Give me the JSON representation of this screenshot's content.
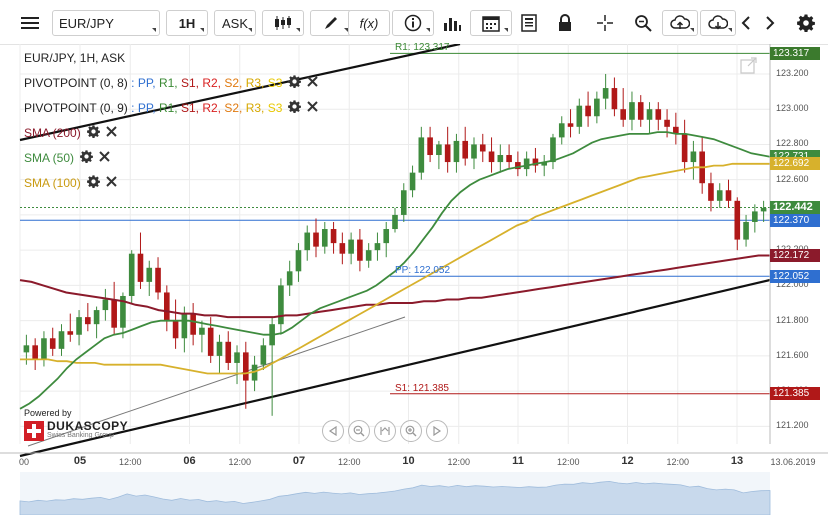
{
  "toolbar": {
    "symbol": "EUR/JPY",
    "timeframe": "1H",
    "price_side": "ASK",
    "fx_label": "f(x)"
  },
  "colors": {
    "pp": "#2f6fd0",
    "r1": "#3b8a35",
    "s1": "#b01818",
    "r2": "#d92020",
    "s2": "#e07a10",
    "r3": "#d6a800",
    "s3": "#e8c800",
    "sma200": "#8b1a2b",
    "sma50": "#3e8b3e",
    "sma100": "#d7b12c",
    "bull": "#3e8b3e",
    "bear": "#b01818",
    "trend": "#111111",
    "last_price": "#3e8b3e"
  },
  "legend": {
    "instrument": "EUR/JPY, 1H, ASK",
    "pivot1_name": "PIVOTPOINT (0, 8)",
    "pivot2_name": "PIVOTPOINT (0, 9)",
    "sep": " : ",
    "levels": [
      "PP",
      "R1",
      "S1",
      "R2",
      "S2",
      "R3",
      "S3"
    ],
    "sma200": "SMA (200)",
    "sma50": "SMA (50)",
    "sma100": "SMA (100)"
  },
  "branding": {
    "powered_by": "Powered by",
    "brand": "DUKASCOPY",
    "tagline": "Swiss Banking Group"
  },
  "chart_data": {
    "type": "candlestick",
    "ylim": [
      121.1,
      123.37
    ],
    "y_ticks": [
      "123.200",
      "123.000",
      "122.800",
      "122.600",
      "122.400",
      "122.200",
      "122.000",
      "121.800",
      "121.600",
      "121.400",
      "121.200"
    ],
    "x_ticks": [
      {
        "label": "00",
        "bold": false,
        "pos": 0.0
      },
      {
        "label": "05",
        "bold": true,
        "pos": 0.08
      },
      {
        "label": "12:00",
        "bold": false,
        "pos": 0.147
      },
      {
        "label": "06",
        "bold": true,
        "pos": 0.226
      },
      {
        "label": "12:00",
        "bold": false,
        "pos": 0.293
      },
      {
        "label": "07",
        "bold": true,
        "pos": 0.372
      },
      {
        "label": "12:00",
        "bold": false,
        "pos": 0.439
      },
      {
        "label": "10",
        "bold": true,
        "pos": 0.518
      },
      {
        "label": "12:00",
        "bold": false,
        "pos": 0.585
      },
      {
        "label": "11",
        "bold": true,
        "pos": 0.664
      },
      {
        "label": "12:00",
        "bold": false,
        "pos": 0.731
      },
      {
        "label": "12",
        "bold": true,
        "pos": 0.81
      },
      {
        "label": "12:00",
        "bold": false,
        "pos": 0.877
      },
      {
        "label": "13",
        "bold": true,
        "pos": 0.956
      }
    ],
    "date_label": "13.06.2019",
    "pivot_levels": [
      {
        "name": "R1",
        "value": 123.317,
        "label": "R1: 123.317"
      },
      {
        "name": "PP",
        "value": 122.052,
        "label": "PP: 122.052"
      },
      {
        "name": "S1",
        "value": 121.385,
        "label": "S1: 121.385"
      }
    ],
    "price_tags": [
      {
        "value": 123.317,
        "label": "123.317",
        "role": "r1"
      },
      {
        "value": 122.731,
        "label": "122.731",
        "role": "sma50"
      },
      {
        "value": 122.692,
        "label": "122.692",
        "role": "sma100"
      },
      {
        "value": 122.442,
        "label": "122.442",
        "role": "last_price"
      },
      {
        "value": 122.37,
        "label": "122.370",
        "role": "pp"
      },
      {
        "value": 122.172,
        "label": "122.172",
        "role": "sma200"
      },
      {
        "value": 122.052,
        "label": "122.052",
        "role": "pp"
      },
      {
        "value": 121.385,
        "label": "121.385",
        "role": "s1"
      }
    ],
    "candles": [
      [
        121.62,
        121.72,
        121.55,
        121.66
      ],
      [
        121.66,
        121.7,
        121.52,
        121.58
      ],
      [
        121.58,
        121.74,
        121.54,
        121.7
      ],
      [
        121.7,
        121.76,
        121.6,
        121.64
      ],
      [
        121.64,
        121.78,
        121.6,
        121.74
      ],
      [
        121.74,
        121.84,
        121.68,
        121.72
      ],
      [
        121.72,
        121.86,
        121.66,
        121.82
      ],
      [
        121.82,
        121.9,
        121.74,
        121.78
      ],
      [
        121.78,
        121.88,
        121.7,
        121.86
      ],
      [
        121.86,
        121.98,
        121.8,
        121.92
      ],
      [
        121.92,
        122.02,
        121.72,
        121.76
      ],
      [
        121.76,
        121.96,
        121.7,
        121.94
      ],
      [
        121.94,
        122.2,
        121.9,
        122.18
      ],
      [
        122.18,
        122.3,
        121.98,
        122.02
      ],
      [
        122.02,
        122.14,
        121.94,
        122.1
      ],
      [
        122.1,
        122.16,
        121.92,
        121.96
      ],
      [
        121.96,
        122.0,
        121.74,
        121.8
      ],
      [
        121.8,
        121.92,
        121.64,
        121.7
      ],
      [
        121.7,
        121.88,
        121.62,
        121.84
      ],
      [
        121.84,
        121.9,
        121.66,
        121.72
      ],
      [
        121.72,
        121.8,
        121.62,
        121.76
      ],
      [
        121.76,
        121.82,
        121.56,
        121.6
      ],
      [
        121.6,
        121.72,
        121.5,
        121.68
      ],
      [
        121.68,
        121.74,
        121.52,
        121.56
      ],
      [
        121.56,
        121.66,
        121.44,
        121.62
      ],
      [
        121.62,
        121.68,
        121.3,
        121.46
      ],
      [
        121.46,
        121.6,
        121.4,
        121.55
      ],
      [
        121.55,
        121.7,
        121.52,
        121.66
      ],
      [
        121.66,
        121.82,
        121.26,
        121.78
      ],
      [
        121.78,
        122.04,
        121.72,
        122.0
      ],
      [
        122.0,
        122.14,
        121.94,
        122.08
      ],
      [
        122.08,
        122.24,
        122.02,
        122.2
      ],
      [
        122.2,
        122.34,
        122.14,
        122.3
      ],
      [
        122.3,
        122.38,
        122.16,
        122.22
      ],
      [
        122.22,
        122.36,
        122.18,
        122.32
      ],
      [
        122.32,
        122.36,
        122.18,
        122.24
      ],
      [
        122.24,
        122.3,
        122.12,
        122.18
      ],
      [
        122.18,
        122.3,
        122.12,
        122.26
      ],
      [
        122.26,
        122.32,
        122.08,
        122.14
      ],
      [
        122.14,
        122.24,
        122.1,
        122.2
      ],
      [
        122.2,
        122.3,
        122.14,
        122.24
      ],
      [
        122.24,
        122.36,
        122.16,
        122.32
      ],
      [
        122.32,
        122.44,
        122.3,
        122.4
      ],
      [
        122.4,
        122.58,
        122.36,
        122.54
      ],
      [
        122.54,
        122.68,
        122.5,
        122.64
      ],
      [
        122.64,
        122.9,
        122.6,
        122.84
      ],
      [
        122.84,
        122.9,
        122.7,
        122.74
      ],
      [
        122.74,
        122.82,
        122.66,
        122.8
      ],
      [
        122.8,
        122.9,
        122.64,
        122.7
      ],
      [
        122.7,
        122.86,
        122.64,
        122.82
      ],
      [
        122.82,
        122.9,
        122.68,
        122.72
      ],
      [
        122.72,
        122.84,
        122.66,
        122.8
      ],
      [
        122.8,
        122.86,
        122.7,
        122.76
      ],
      [
        122.76,
        122.84,
        122.64,
        122.7
      ],
      [
        122.7,
        122.8,
        122.64,
        122.74
      ],
      [
        122.74,
        122.8,
        122.66,
        122.7
      ],
      [
        122.7,
        122.76,
        122.62,
        122.66
      ],
      [
        122.66,
        122.76,
        122.62,
        122.72
      ],
      [
        122.72,
        122.78,
        122.64,
        122.68
      ],
      [
        122.68,
        122.74,
        122.62,
        122.7
      ],
      [
        122.7,
        122.86,
        122.66,
        122.84
      ],
      [
        122.84,
        122.96,
        122.8,
        122.92
      ],
      [
        122.92,
        123.0,
        122.84,
        122.9
      ],
      [
        122.9,
        123.06,
        122.86,
        123.02
      ],
      [
        123.02,
        123.1,
        122.9,
        122.96
      ],
      [
        122.96,
        123.1,
        122.92,
        123.06
      ],
      [
        123.06,
        123.2,
        123.0,
        123.12
      ],
      [
        123.12,
        123.18,
        122.96,
        123.0
      ],
      [
        123.0,
        123.12,
        122.9,
        122.94
      ],
      [
        122.94,
        123.1,
        122.88,
        123.04
      ],
      [
        123.04,
        123.08,
        122.9,
        122.94
      ],
      [
        122.94,
        123.04,
        122.86,
        123.0
      ],
      [
        123.0,
        123.04,
        122.88,
        122.94
      ],
      [
        122.94,
        123.0,
        122.84,
        122.9
      ],
      [
        122.9,
        122.98,
        122.8,
        122.86
      ],
      [
        122.86,
        122.94,
        122.64,
        122.7
      ],
      [
        122.7,
        122.82,
        122.6,
        122.76
      ],
      [
        122.76,
        122.84,
        122.52,
        122.58
      ],
      [
        122.58,
        122.64,
        122.42,
        122.48
      ],
      [
        122.48,
        122.58,
        122.44,
        122.54
      ],
      [
        122.54,
        122.6,
        122.44,
        122.48
      ],
      [
        122.48,
        122.5,
        122.2,
        122.26
      ],
      [
        122.26,
        122.4,
        122.22,
        122.36
      ],
      [
        122.36,
        122.46,
        122.3,
        122.42
      ],
      [
        122.42,
        122.48,
        122.36,
        122.44
      ]
    ],
    "sma50": [
      121.3,
      121.33,
      121.37,
      121.42,
      121.47,
      121.53,
      121.58,
      121.62,
      121.66,
      121.7,
      121.72,
      121.73,
      121.75,
      121.77,
      121.79,
      121.8,
      121.8,
      121.8,
      121.8,
      121.79,
      121.78,
      121.77,
      121.76,
      121.75,
      121.74,
      121.73,
      121.72,
      121.72,
      121.73,
      121.76,
      121.8,
      121.84,
      121.87,
      121.89,
      121.91,
      121.93,
      121.95,
      121.97,
      122.0,
      122.04,
      122.08,
      122.13,
      122.19,
      122.26,
      122.33,
      122.41,
      122.48,
      122.53,
      122.57,
      122.6,
      122.62,
      122.64,
      122.66,
      122.67,
      122.68,
      122.69,
      122.7,
      122.71,
      122.73,
      122.75,
      122.78,
      122.81,
      122.83,
      122.84,
      122.85,
      122.86,
      122.86,
      122.86,
      122.87,
      122.87,
      122.86,
      122.86,
      122.85,
      122.84,
      122.83,
      122.81,
      122.79,
      122.77,
      122.75,
      122.74,
      122.73
    ],
    "sma100": [
      121.58,
      121.58,
      121.58,
      121.58,
      121.57,
      121.57,
      121.56,
      121.56,
      121.56,
      121.55,
      121.55,
      121.55,
      121.55,
      121.55,
      121.55,
      121.55,
      121.54,
      121.53,
      121.52,
      121.51,
      121.5,
      121.5,
      121.5,
      121.5,
      121.5,
      121.51,
      121.53,
      121.56,
      121.59,
      121.62,
      121.65,
      121.68,
      121.71,
      121.74,
      121.77,
      121.8,
      121.83,
      121.86,
      121.89,
      121.92,
      121.95,
      121.98,
      122.01,
      122.04,
      122.07,
      122.1,
      122.13,
      122.16,
      122.19,
      122.22,
      122.25,
      122.28,
      122.31,
      122.34,
      122.36,
      122.39,
      122.41,
      122.43,
      122.45,
      122.47,
      122.49,
      122.51,
      122.53,
      122.55,
      122.57,
      122.59,
      122.61,
      122.62,
      122.63,
      122.64,
      122.65,
      122.66,
      122.67,
      122.67,
      122.68,
      122.68,
      122.69,
      122.69,
      122.69,
      122.69,
      122.69
    ],
    "sma200": [
      122.03,
      122.02,
      122.0,
      121.98,
      121.96,
      121.95,
      121.94,
      121.93,
      121.92,
      121.91,
      121.89,
      121.88,
      121.86,
      121.85,
      121.84,
      121.84,
      121.83,
      121.83,
      121.82,
      121.82,
      121.82,
      121.82,
      121.82,
      121.83,
      121.83,
      121.84,
      121.85,
      121.86,
      121.87,
      121.88,
      121.89,
      121.89,
      121.9,
      121.9,
      121.9,
      121.91,
      121.91,
      121.92,
      121.92,
      121.93,
      121.93,
      121.94,
      121.95,
      121.96,
      121.97,
      121.98,
      121.99,
      122.0,
      122.01,
      122.02,
      122.03,
      122.04,
      122.05,
      122.06,
      122.07,
      122.08,
      122.09,
      122.1,
      122.11,
      122.12,
      122.13,
      122.14,
      122.15,
      122.16,
      122.17,
      122.17
    ]
  }
}
